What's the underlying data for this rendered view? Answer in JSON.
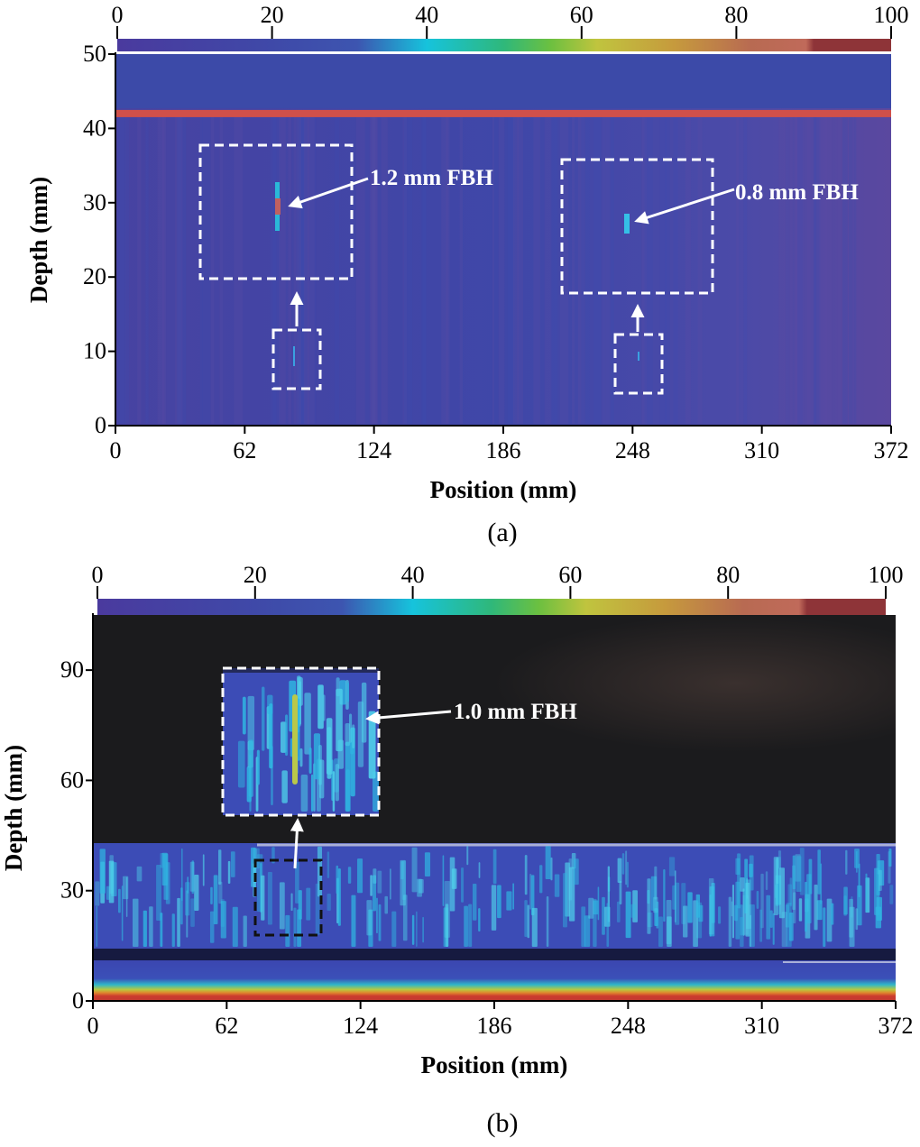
{
  "chart_data": [
    {
      "type": "heatmap",
      "panel_label": "(a)",
      "xlabel": "Position (mm)",
      "ylabel": "Depth (mm)",
      "xticks": [
        "0",
        "62",
        "124",
        "186",
        "248",
        "310",
        "372"
      ],
      "yticks": [
        "0",
        "10",
        "20",
        "30",
        "40",
        "50"
      ],
      "xlim": [
        0,
        372
      ],
      "ylim": [
        0,
        50
      ],
      "colorbar": {
        "ticks": [
          "0",
          "20",
          "40",
          "60",
          "80",
          "100"
        ],
        "range": [
          0,
          100
        ],
        "placement": "top"
      },
      "features": {
        "back_wall_depth": 42
      },
      "annotations": [
        {
          "text": "1.2 mm FBH",
          "position": 77,
          "depth": 30
        },
        {
          "text": "0.8 mm FBH",
          "position": 247,
          "depth": 27
        }
      ]
    },
    {
      "type": "heatmap",
      "panel_label": "(b)",
      "xlabel": "Position (mm)",
      "ylabel": "Depth (mm)",
      "xticks": [
        "0",
        "62",
        "124",
        "186",
        "248",
        "310",
        "372"
      ],
      "yticks": [
        "0",
        "30",
        "60",
        "90"
      ],
      "xlim": [
        0,
        372
      ],
      "ylim": [
        0,
        105
      ],
      "colorbar": {
        "ticks": [
          "0",
          "20",
          "40",
          "60",
          "80",
          "100"
        ],
        "range": [
          0,
          100
        ],
        "placement": "top"
      },
      "annotations": [
        {
          "text": "1.0 mm FBH",
          "position": 92,
          "depth": 28
        }
      ]
    }
  ],
  "colors": {
    "low": "#3a3fa6",
    "mid": "#19c4dc",
    "high": "#b2373a",
    "background_dark": "#1b1b1d"
  }
}
